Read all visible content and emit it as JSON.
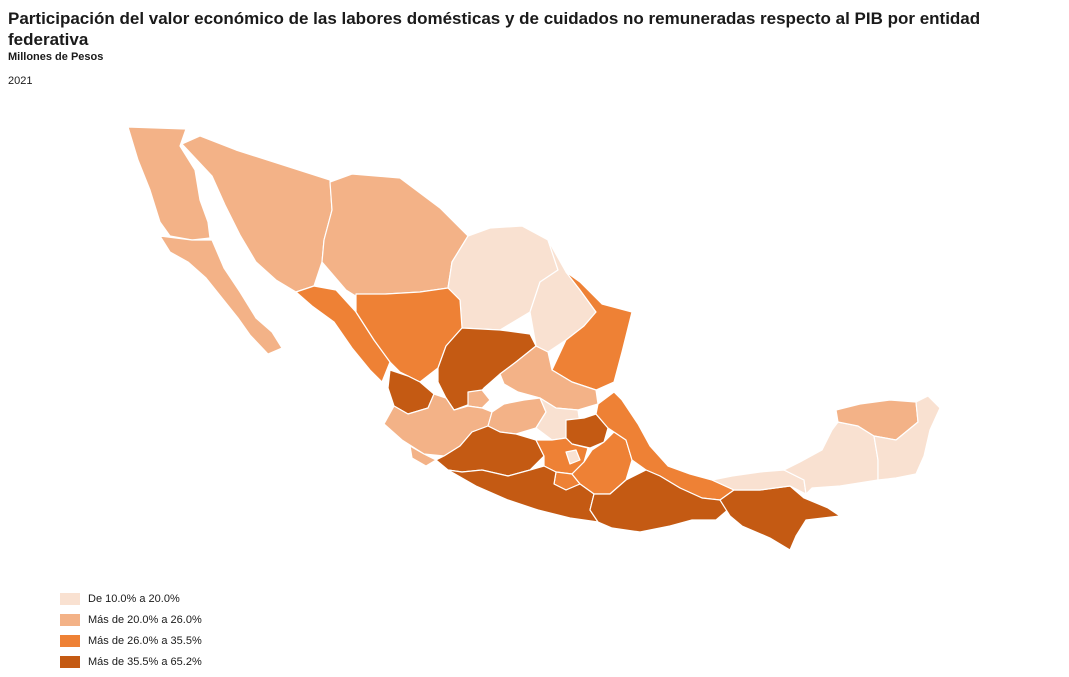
{
  "header": {
    "title": "Participación del valor económico de las labores domésticas y de cuidados no remuneradas respecto al PIB por entidad federativa",
    "subtitle": "Millones de Pesos",
    "year": "2021"
  },
  "colors": {
    "class1": "#f9e1d1",
    "class2": "#f3b287",
    "class3": "#ee8135",
    "class4": "#c45a13"
  },
  "legend": [
    {
      "label": "De 10.0% a 20.0%",
      "cls": "class1"
    },
    {
      "label": "Más de 20.0% a 26.0%",
      "cls": "class2"
    },
    {
      "label": "Más de 26.0% a 35.5%",
      "cls": "class3"
    },
    {
      "label": "Más de 35.5% a 65.2%",
      "cls": "class4"
    }
  ],
  "regions": [
    {
      "id": "baja-california",
      "cls": "class2"
    },
    {
      "id": "baja-california-sur",
      "cls": "class2"
    },
    {
      "id": "sonora",
      "cls": "class2"
    },
    {
      "id": "chihuahua",
      "cls": "class2"
    },
    {
      "id": "coahuila",
      "cls": "class1"
    },
    {
      "id": "nuevo-leon",
      "cls": "class1"
    },
    {
      "id": "tamaulipas",
      "cls": "class3"
    },
    {
      "id": "sinaloa",
      "cls": "class3"
    },
    {
      "id": "durango",
      "cls": "class3"
    },
    {
      "id": "zacatecas",
      "cls": "class4"
    },
    {
      "id": "nayarit",
      "cls": "class4"
    },
    {
      "id": "aguascalientes",
      "cls": "class2"
    },
    {
      "id": "san-luis-potosi",
      "cls": "class2"
    },
    {
      "id": "jalisco",
      "cls": "class2"
    },
    {
      "id": "colima",
      "cls": "class2"
    },
    {
      "id": "guanajuato",
      "cls": "class2"
    },
    {
      "id": "queretaro",
      "cls": "class1"
    },
    {
      "id": "hidalgo",
      "cls": "class4"
    },
    {
      "id": "michoacan",
      "cls": "class4"
    },
    {
      "id": "estado-de-mexico",
      "cls": "class3"
    },
    {
      "id": "ciudad-de-mexico",
      "cls": "class1"
    },
    {
      "id": "morelos",
      "cls": "class3"
    },
    {
      "id": "tlaxcala",
      "cls": "class4"
    },
    {
      "id": "puebla",
      "cls": "class3"
    },
    {
      "id": "veracruz",
      "cls": "class3"
    },
    {
      "id": "guerrero",
      "cls": "class4"
    },
    {
      "id": "oaxaca",
      "cls": "class4"
    },
    {
      "id": "chiapas",
      "cls": "class4"
    },
    {
      "id": "tabasco",
      "cls": "class1"
    },
    {
      "id": "campeche",
      "cls": "class1"
    },
    {
      "id": "yucatan",
      "cls": "class2"
    },
    {
      "id": "quintana-roo",
      "cls": "class1"
    }
  ]
}
